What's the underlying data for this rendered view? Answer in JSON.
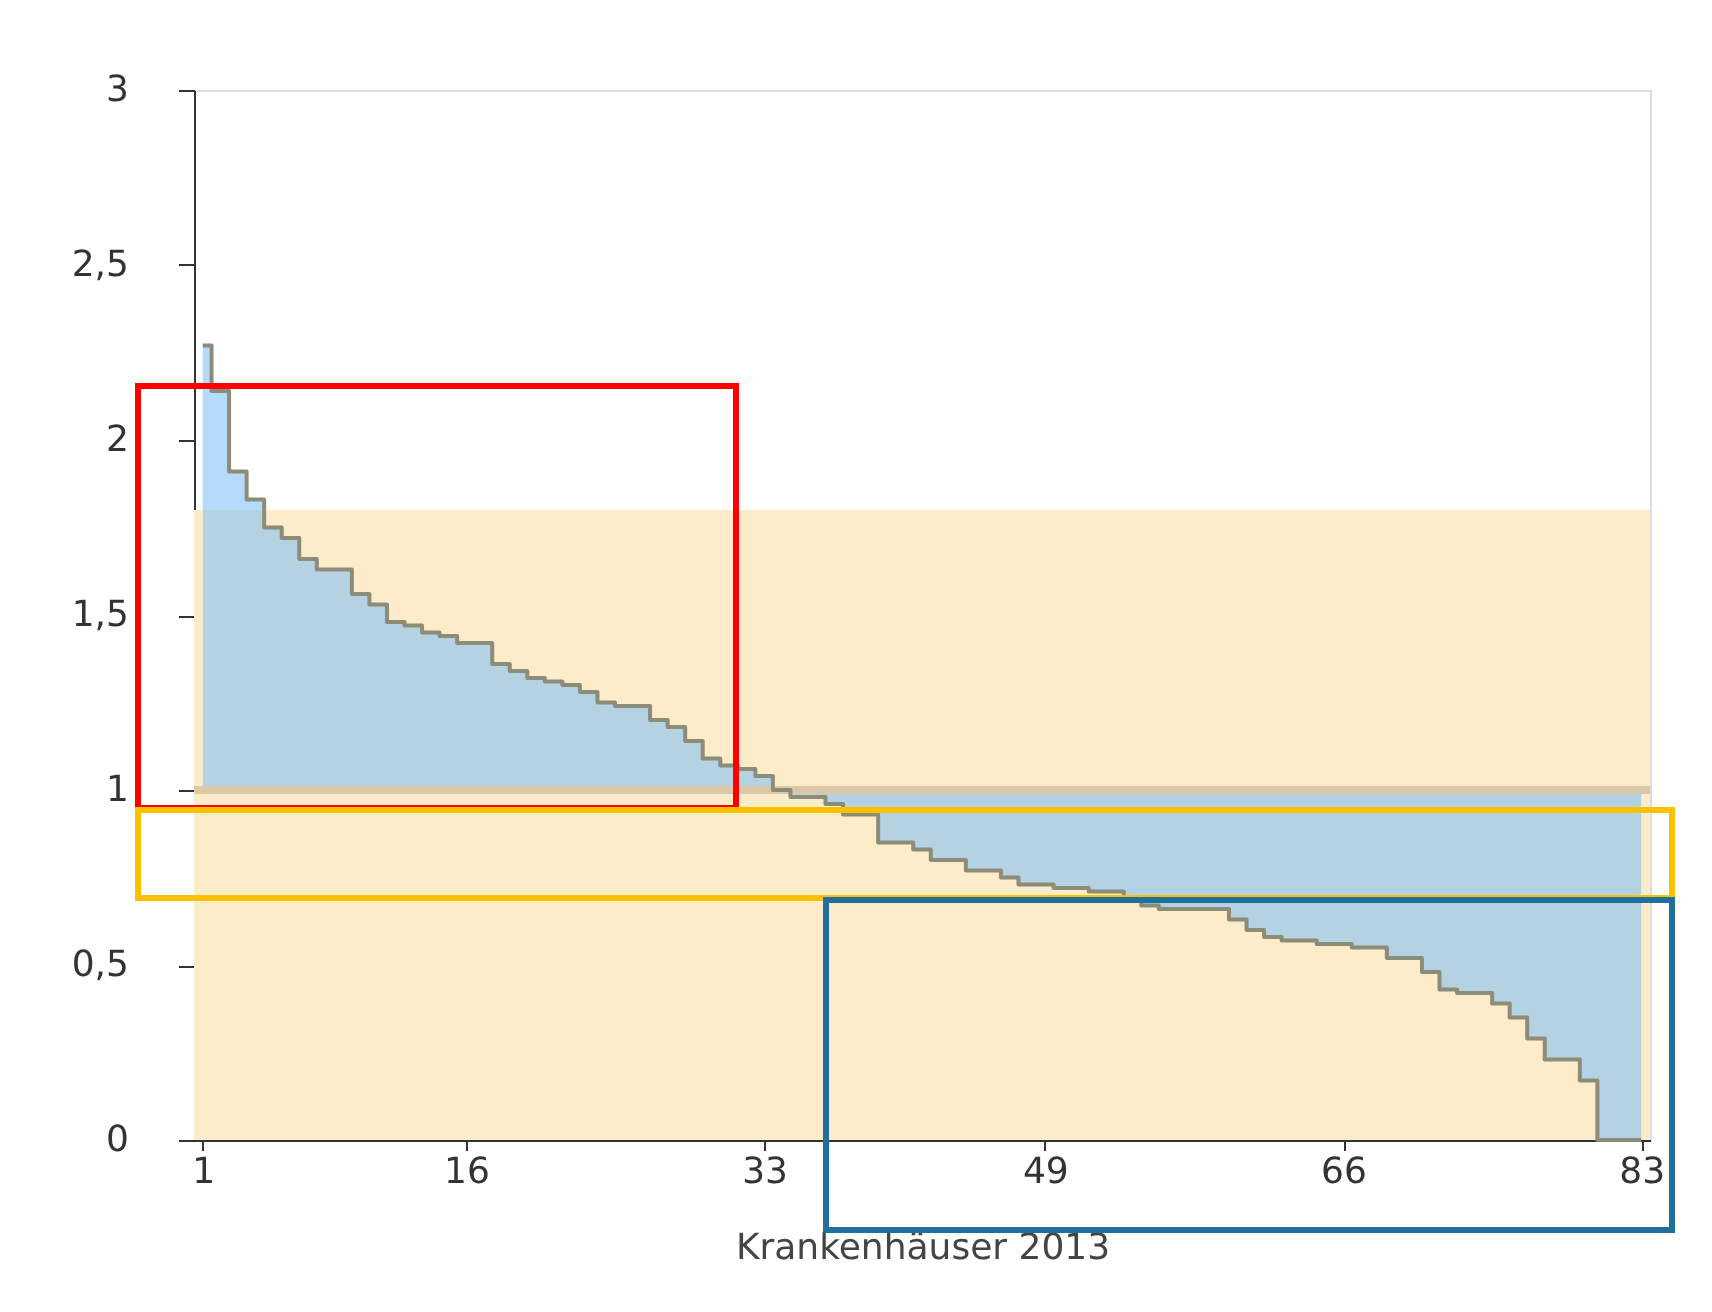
{
  "chart_data": {
    "type": "step",
    "xlabel": "Krankenhäuser 2013",
    "x": [
      1,
      2,
      3,
      4,
      5,
      6,
      7,
      8,
      9,
      10,
      11,
      12,
      13,
      14,
      15,
      16,
      17,
      18,
      19,
      20,
      21,
      22,
      23,
      24,
      25,
      26,
      27,
      28,
      29,
      30,
      31,
      32,
      33,
      34,
      35,
      36,
      37,
      38,
      39,
      40,
      41,
      42,
      43,
      44,
      45,
      46,
      47,
      48,
      49,
      50,
      51,
      52,
      53,
      54,
      55,
      56,
      57,
      58,
      59,
      60,
      61,
      62,
      63,
      64,
      65,
      66,
      67,
      68,
      69,
      70,
      71,
      72,
      73,
      74,
      75,
      76,
      77,
      78,
      79,
      80,
      81,
      82,
      83
    ],
    "values": [
      2.27,
      2.14,
      1.91,
      1.83,
      1.75,
      1.72,
      1.66,
      1.63,
      1.63,
      1.56,
      1.53,
      1.48,
      1.47,
      1.45,
      1.44,
      1.42,
      1.42,
      1.36,
      1.34,
      1.32,
      1.31,
      1.3,
      1.28,
      1.25,
      1.24,
      1.24,
      1.2,
      1.18,
      1.14,
      1.09,
      1.07,
      1.06,
      1.04,
      1.0,
      0.98,
      0.98,
      0.96,
      0.93,
      0.93,
      0.85,
      0.85,
      0.83,
      0.8,
      0.8,
      0.77,
      0.77,
      0.75,
      0.73,
      0.73,
      0.72,
      0.72,
      0.71,
      0.71,
      0.69,
      0.67,
      0.66,
      0.66,
      0.66,
      0.66,
      0.63,
      0.6,
      0.58,
      0.57,
      0.57,
      0.56,
      0.56,
      0.55,
      0.55,
      0.52,
      0.52,
      0.48,
      0.43,
      0.42,
      0.42,
      0.39,
      0.35,
      0.29,
      0.23,
      0.23,
      0.17,
      0,
      0,
      0
    ],
    "color": "#8c8c78",
    "xlim": [
      0.5,
      83.5
    ],
    "xticks": [
      1,
      16,
      33,
      49,
      66,
      83
    ],
    "ylim": [
      0,
      3
    ],
    "yticks": [
      0,
      {
        "value": 0.5,
        "label": "0,5"
      },
      1,
      {
        "value": 1.5,
        "label": "1,5"
      },
      2,
      {
        "value": 2.5,
        "label": "2,5"
      },
      3
    ],
    "bands": [
      {
        "axis": "y",
        "from": 0,
        "to": 1.8,
        "color": "#fdecca"
      }
    ],
    "ref_lines": [
      {
        "axis": "y",
        "value": 1,
        "color": "#dcc8a6"
      }
    ],
    "grid": false
  }
}
